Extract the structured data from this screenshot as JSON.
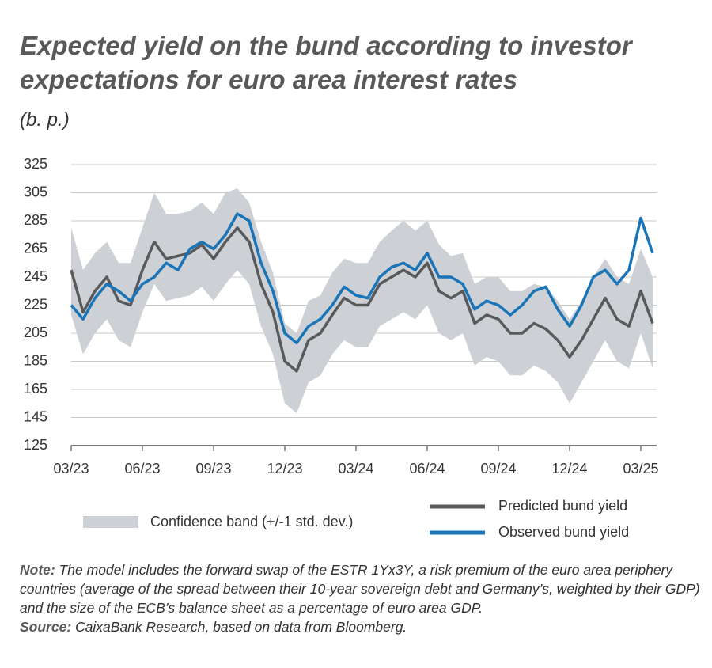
{
  "chart_data": {
    "type": "line",
    "title": "Expected yield on the bund according to investor expectations for euro area interest rates",
    "subtitle": "(b. p.)",
    "x": [
      "03/23",
      null,
      null,
      null,
      null,
      null,
      "06/23",
      null,
      null,
      null,
      null,
      null,
      "09/23",
      null,
      null,
      null,
      null,
      null,
      "12/23",
      null,
      null,
      null,
      null,
      null,
      "03/24",
      null,
      null,
      null,
      null,
      null,
      "06/24",
      null,
      null,
      null,
      null,
      null,
      "09/24",
      null,
      null,
      null,
      null,
      null,
      "12/24",
      null,
      null,
      null,
      null,
      null,
      "03/25",
      null
    ],
    "ylim": [
      125,
      325
    ],
    "yticks": [
      125,
      145,
      165,
      185,
      205,
      225,
      245,
      265,
      285,
      305,
      325
    ],
    "grid": true,
    "band": {
      "name": "Confidence band (+/-1 std. dev.)",
      "color": "#cdd1d5",
      "upper": [
        280,
        250,
        262,
        270,
        255,
        255,
        280,
        305,
        290,
        290,
        292,
        298,
        290,
        305,
        308,
        298,
        270,
        248,
        212,
        205,
        228,
        232,
        248,
        258,
        255,
        255,
        270,
        278,
        285,
        278,
        285,
        268,
        260,
        262,
        240,
        245,
        245,
        235,
        235,
        240,
        238,
        228,
        215,
        228,
        245,
        258,
        245,
        240,
        265,
        245
      ],
      "lower": [
        218,
        190,
        205,
        215,
        200,
        195,
        220,
        240,
        228,
        230,
        232,
        238,
        228,
        240,
        250,
        240,
        210,
        190,
        155,
        148,
        170,
        175,
        190,
        200,
        195,
        195,
        210,
        215,
        220,
        215,
        225,
        205,
        200,
        205,
        182,
        188,
        185,
        175,
        175,
        182,
        178,
        170,
        155,
        170,
        185,
        200,
        185,
        180,
        205,
        180
      ]
    },
    "series": [
      {
        "name": "Predicted bund yield",
        "color": "#58595b",
        "values": [
          250,
          220,
          235,
          245,
          228,
          225,
          250,
          270,
          258,
          260,
          262,
          268,
          258,
          270,
          280,
          270,
          240,
          220,
          185,
          178,
          200,
          205,
          218,
          230,
          225,
          225,
          240,
          245,
          250,
          245,
          255,
          235,
          230,
          235,
          212,
          218,
          215,
          205,
          205,
          212,
          208,
          200,
          188,
          200,
          215,
          230,
          215,
          210,
          235,
          212
        ]
      },
      {
        "name": "Observed bund yield",
        "color": "#1a74b8",
        "values": [
          225,
          215,
          230,
          240,
          235,
          228,
          240,
          245,
          255,
          250,
          265,
          270,
          265,
          275,
          290,
          285,
          255,
          235,
          205,
          198,
          210,
          215,
          225,
          238,
          232,
          230,
          245,
          252,
          255,
          250,
          262,
          245,
          245,
          240,
          222,
          228,
          225,
          218,
          225,
          235,
          238,
          222,
          210,
          225,
          245,
          250,
          240,
          250,
          287,
          262
        ]
      }
    ],
    "note_label": "Note:",
    "note": "The model includes the forward swap of the ESTR 1Yx3Y, a risk premium of the euro area periphery countries (average of the spread between their 10-year sovereign debt and Germany’s, weighted by their GDP) and the size of the ECB’s balance sheet as a percentage of euro area GDP.",
    "source_label": "Source:",
    "source": "CaixaBank Research, based on data from Bloomberg."
  }
}
